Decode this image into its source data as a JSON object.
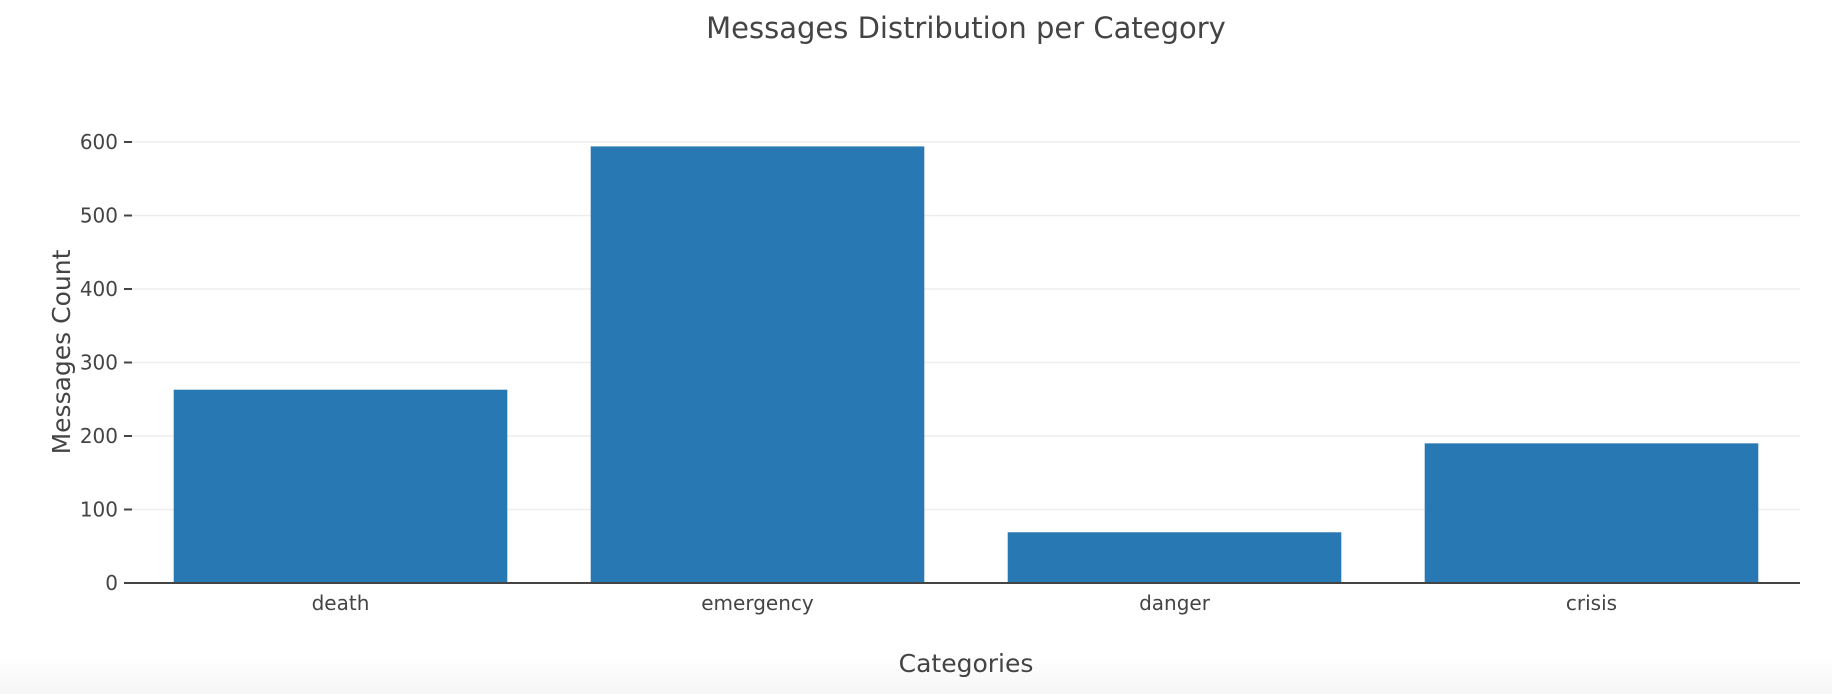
{
  "chart_data": {
    "type": "bar",
    "title": "Messages Distribution per Category",
    "xlabel": "Categories",
    "ylabel": "Messages Count",
    "categories": [
      "death",
      "emergency",
      "danger",
      "crisis"
    ],
    "values": [
      263,
      594,
      69,
      190
    ],
    "ylim": [
      0,
      600
    ],
    "yticks": [
      0,
      100,
      200,
      300,
      400,
      500,
      600
    ],
    "grid": true,
    "legend": "none",
    "bar_color": "#2878b4"
  }
}
